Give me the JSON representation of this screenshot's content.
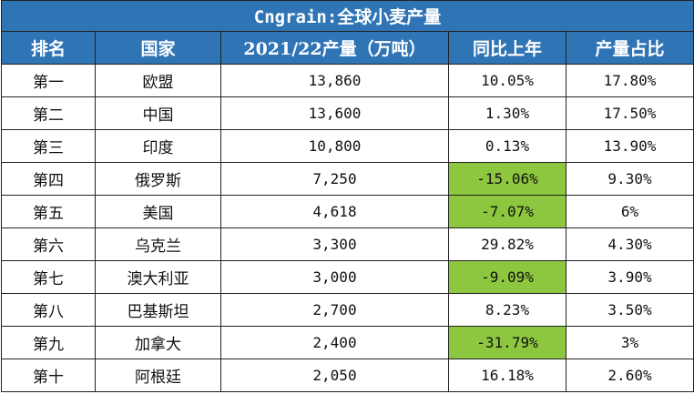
{
  "title": "Cngrain:全球小麦产量",
  "headers": [
    "排名",
    "国家",
    "2021/22产量（万吨）",
    "同比上年",
    "产量占比"
  ],
  "colors": {
    "header_bg": "#2f74b5",
    "header_text": "#ffffff",
    "negative_bg": "#8dc63f"
  },
  "rows": [
    {
      "rank": "第一",
      "country": "欧盟",
      "production": "13,860",
      "yoy": "10.05%",
      "share": "17.80%",
      "yoy_negative": false
    },
    {
      "rank": "第二",
      "country": "中国",
      "production": "13,600",
      "yoy": "1.30%",
      "share": "17.50%",
      "yoy_negative": false
    },
    {
      "rank": "第三",
      "country": "印度",
      "production": "10,800",
      "yoy": "0.13%",
      "share": "13.90%",
      "yoy_negative": false
    },
    {
      "rank": "第四",
      "country": "俄罗斯",
      "production": "7,250",
      "yoy": "-15.06%",
      "share": "9.30%",
      "yoy_negative": true
    },
    {
      "rank": "第五",
      "country": "美国",
      "production": "4,618",
      "yoy": "-7.07%",
      "share": "6%",
      "yoy_negative": true
    },
    {
      "rank": "第六",
      "country": "乌克兰",
      "production": "3,300",
      "yoy": "29.82%",
      "share": "4.30%",
      "yoy_negative": false
    },
    {
      "rank": "第七",
      "country": "澳大利亚",
      "production": "3,000",
      "yoy": "-9.09%",
      "share": "3.90%",
      "yoy_negative": true
    },
    {
      "rank": "第八",
      "country": "巴基斯坦",
      "production": "2,700",
      "yoy": "8.23%",
      "share": "3.50%",
      "yoy_negative": false
    },
    {
      "rank": "第九",
      "country": "加拿大",
      "production": "2,400",
      "yoy": "-31.79%",
      "share": "3%",
      "yoy_negative": true
    },
    {
      "rank": "第十",
      "country": "阿根廷",
      "production": "2,050",
      "yoy": "16.18%",
      "share": "2.60%",
      "yoy_negative": false
    }
  ]
}
